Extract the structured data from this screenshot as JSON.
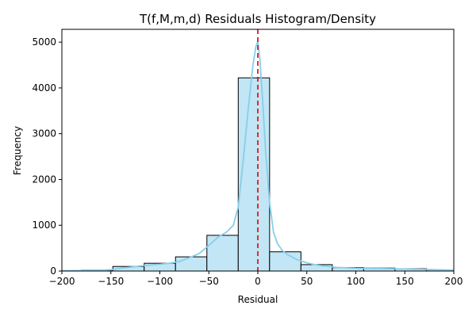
{
  "chart_data": {
    "type": "histogram",
    "title": "T(f,M,m,d) Residuals Histogram/Density",
    "xlabel": "Residual",
    "ylabel": "Frequency",
    "xlim": [
      -200,
      200
    ],
    "ylim": [
      0,
      5280
    ],
    "x_ticks": [
      -200,
      -150,
      -100,
      -50,
      0,
      50,
      100,
      150,
      200
    ],
    "x_tick_labels": [
      "−200",
      "−150",
      "−100",
      "−50",
      "0",
      "50",
      "100",
      "150",
      "200"
    ],
    "y_ticks": [
      0,
      1000,
      2000,
      3000,
      4000,
      5000
    ],
    "y_tick_labels": [
      "0",
      "1000",
      "2000",
      "3000",
      "4000",
      "5000"
    ],
    "grid": false,
    "bins": [
      {
        "x0": -212,
        "x1": -180,
        "count": 5
      },
      {
        "x0": -180,
        "x1": -148,
        "count": 20
      },
      {
        "x0": -148,
        "x1": -116,
        "count": 100
      },
      {
        "x0": -116,
        "x1": -84,
        "count": 170
      },
      {
        "x0": -84,
        "x1": -52,
        "count": 310
      },
      {
        "x0": -52,
        "x1": -20,
        "count": 780
      },
      {
        "x0": -20,
        "x1": 12,
        "count": 4220
      },
      {
        "x0": 12,
        "x1": 44,
        "count": 420
      },
      {
        "x0": 44,
        "x1": 76,
        "count": 140
      },
      {
        "x0": 76,
        "x1": 108,
        "count": 75
      },
      {
        "x0": 108,
        "x1": 140,
        "count": 65
      },
      {
        "x0": 140,
        "x1": 172,
        "count": 50
      },
      {
        "x0": 172,
        "x1": 204,
        "count": 25
      }
    ],
    "density_curve": {
      "x": [
        -200,
        -180,
        -160,
        -150,
        -140,
        -120,
        -100,
        -90,
        -80,
        -70,
        -60,
        -50,
        -40,
        -32,
        -25,
        -20,
        -15,
        -10,
        -5,
        -2,
        0,
        2,
        5,
        8,
        12,
        16,
        20,
        25,
        30,
        40,
        50,
        60,
        80,
        100,
        120,
        140,
        160,
        180,
        200
      ],
      "y": [
        5,
        10,
        20,
        30,
        60,
        110,
        150,
        170,
        210,
        290,
        380,
        560,
        750,
        850,
        1000,
        1400,
        2400,
        3500,
        4500,
        4900,
        5020,
        4650,
        3700,
        2600,
        1500,
        850,
        600,
        450,
        360,
        250,
        180,
        130,
        80,
        60,
        55,
        50,
        40,
        30,
        20
      ]
    },
    "reference_line": {
      "x": 0,
      "style": "dashed"
    },
    "colors": {
      "bar_fill": "#c2e6f5",
      "bar_edge": "#000000",
      "density": "#87ceeb",
      "reference_line": "#dd0000"
    }
  }
}
